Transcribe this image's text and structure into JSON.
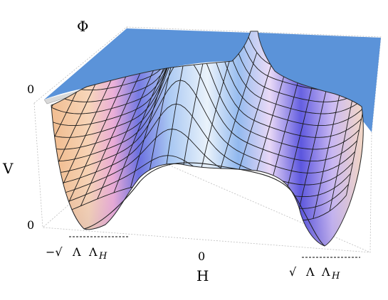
{
  "chart_data": {
    "type": "surface",
    "description_axes": {
      "x": {
        "label": "H",
        "ticks": [
          "−√ΛΛ_H",
          "0",
          "√ΛΛ_H"
        ]
      },
      "y": {
        "label": "Φ",
        "ticks": []
      },
      "z": {
        "label": "V",
        "ticks": [
          "0",
          "0"
        ]
      }
    },
    "xlabel": "H",
    "ylabel": "Φ",
    "zlabel": "V",
    "surface": {
      "shape": "double-well in H, with two minima at H = ±√(ΛΛ_H) where V = 0; local maximum ridge at H = 0 that rises steeply toward the back (Φ → 0 plane)",
      "minima": [
        {
          "H": "−√(ΛΛ_H)",
          "V": 0
        },
        {
          "H": "√(ΛΛ_H)",
          "V": 0
        }
      ]
    },
    "plane": {
      "label_level": "0",
      "color": "#5b93d9"
    },
    "colors": {
      "plane": "#5b93d9",
      "warm": "#f5c9a0",
      "cool": "#6b73e6",
      "light": "#f6eefb"
    }
  },
  "labels": {
    "phi": "Φ",
    "v": "V",
    "h": "H",
    "z_top_tick": "0",
    "z_bottom_tick": "0",
    "h_zero_tick": "0",
    "h_left_tick_prefix": "−√",
    "h_right_tick_prefix": "√",
    "lambda": "Λ",
    "lambda_h": "Λ",
    "sub_h": "H"
  }
}
